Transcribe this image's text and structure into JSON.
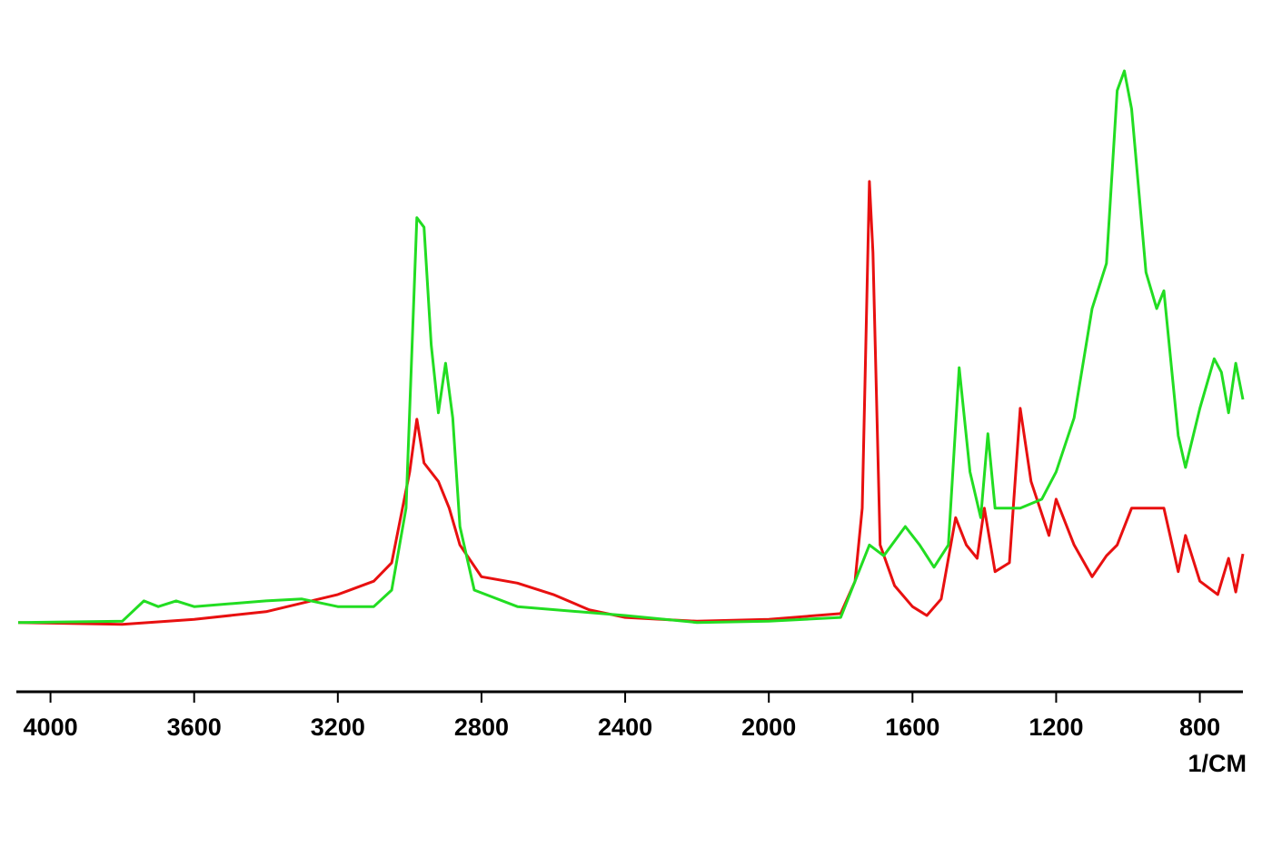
{
  "chart_data": {
    "type": "line",
    "x_label": "1/CM",
    "xlim": [
      4090,
      680
    ],
    "ylim": [
      0,
      100
    ],
    "xticks": [
      4000,
      3600,
      3200,
      2800,
      2400,
      2000,
      1600,
      1200,
      800
    ],
    "series": [
      {
        "color": "#e81010",
        "x": [
          4090,
          3800,
          3600,
          3400,
          3200,
          3100,
          3050,
          3000,
          2980,
          2960,
          2920,
          2890,
          2860,
          2800,
          2700,
          2600,
          2500,
          2400,
          2200,
          2000,
          1800,
          1760,
          1740,
          1720,
          1710,
          1690,
          1650,
          1600,
          1560,
          1520,
          1480,
          1450,
          1420,
          1400,
          1370,
          1330,
          1300,
          1270,
          1220,
          1200,
          1150,
          1100,
          1060,
          1030,
          990,
          950,
          900,
          860,
          840,
          800,
          750,
          720,
          700,
          680
        ],
        "values": [
          10.9,
          10.6,
          11.4,
          12.6,
          15.3,
          17.4,
          20.3,
          34.6,
          42.9,
          36,
          33.1,
          28.9,
          23.1,
          18.1,
          17.1,
          15.3,
          12.9,
          11.7,
          11.1,
          11.4,
          12.3,
          17.4,
          28.9,
          80.3,
          69.1,
          23.1,
          16.7,
          13.4,
          12,
          14.6,
          27.4,
          23.1,
          21,
          28.9,
          18.9,
          20.3,
          44.6,
          33.1,
          24.6,
          30.3,
          23.1,
          18.1,
          21.4,
          23.1,
          28.9,
          28.9,
          28.9,
          18.9,
          24.6,
          17.4,
          15.3,
          21,
          15.7,
          21.7
        ]
      },
      {
        "color": "#22dd22",
        "x": [
          4090,
          3800,
          3740,
          3700,
          3650,
          3600,
          3400,
          3300,
          3200,
          3100,
          3050,
          3010,
          2980,
          2960,
          2940,
          2920,
          2900,
          2880,
          2860,
          2820,
          2700,
          2400,
          2200,
          2000,
          1800,
          1760,
          1720,
          1680,
          1620,
          1580,
          1540,
          1500,
          1470,
          1440,
          1410,
          1390,
          1370,
          1300,
          1240,
          1200,
          1150,
          1100,
          1060,
          1030,
          1010,
          990,
          950,
          920,
          900,
          860,
          840,
          800,
          760,
          740,
          720,
          700,
          680
        ],
        "values": [
          10.9,
          11.1,
          14.3,
          13.4,
          14.3,
          13.4,
          14.3,
          14.6,
          13.4,
          13.4,
          16,
          28.9,
          74.6,
          73.1,
          54.6,
          43.9,
          51.7,
          43.1,
          26,
          16,
          13.4,
          12,
          10.9,
          11.1,
          11.7,
          17.4,
          23.1,
          21.4,
          26,
          23.1,
          19.6,
          23.1,
          51,
          34.6,
          27.4,
          40.6,
          28.9,
          28.9,
          30.3,
          34.6,
          43.1,
          60.3,
          67.4,
          94.6,
          97.7,
          91.7,
          66,
          60.3,
          63.1,
          40.3,
          35.3,
          44.6,
          52.4,
          50.3,
          43.9,
          51.7,
          46
        ]
      }
    ]
  }
}
